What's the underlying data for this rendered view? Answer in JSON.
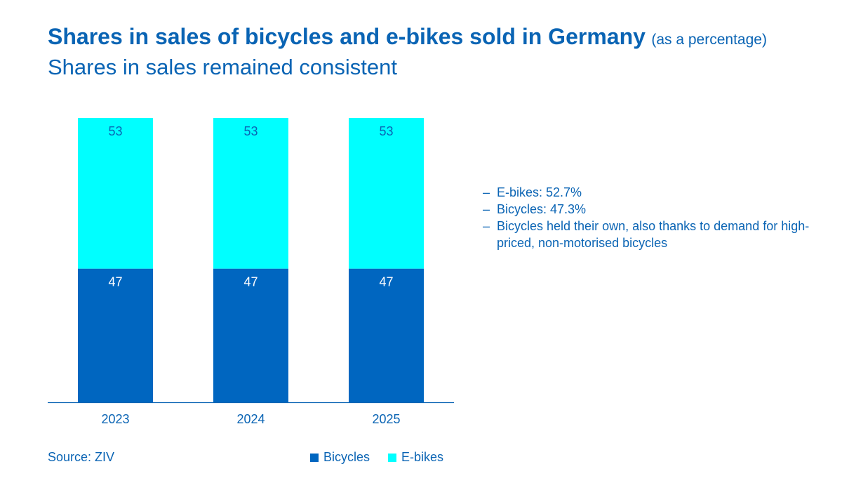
{
  "title": {
    "main": "Shares in sales of bicycles and e-bikes sold in Germany",
    "note": "(as a percentage)"
  },
  "subtitle": "Shares in sales remained consistent",
  "notes": [
    "E-bikes: 52.7%",
    "Bicycles: 47.3%",
    "Bicycles held their own, also thanks to demand for high-priced, non-motorised bicycles"
  ],
  "source": "Source: ZIV",
  "colors": {
    "text": "#0a64b4",
    "bicycles": "#0066c0",
    "ebikes": "#00ffff",
    "axis": "#0a64b4"
  },
  "chart_data": {
    "type": "bar",
    "stacked": true,
    "categories": [
      "2023",
      "2024",
      "2025"
    ],
    "series": [
      {
        "name": "Bicycles",
        "values": [
          47,
          47,
          47
        ],
        "color": "#0066c0",
        "label_color": "#ffffff"
      },
      {
        "name": "E-bikes",
        "values": [
          53,
          53,
          53
        ],
        "color": "#00ffff",
        "label_color": "#0a64b4"
      }
    ],
    "ylim": [
      0,
      100
    ],
    "grid": false,
    "legend": "bottom"
  }
}
